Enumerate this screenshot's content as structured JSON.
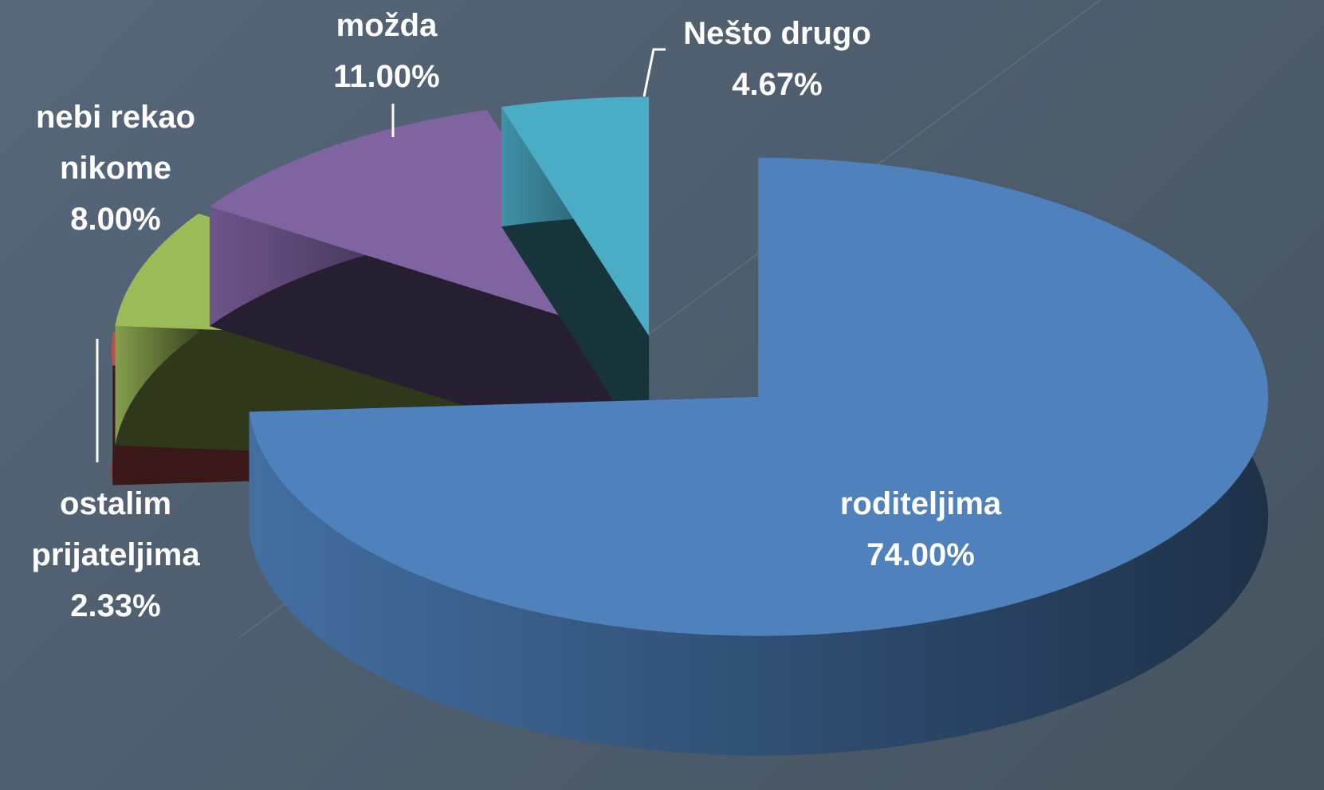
{
  "chart_data": {
    "type": "pie3d",
    "categories": [
      "roditeljima",
      "ostalim prijateljima",
      "nebi rekao nikome",
      "možda",
      "Nešto drugo"
    ],
    "values": [
      74,
      2.33,
      8,
      11,
      4.67
    ],
    "value_labels": [
      "74.00%",
      "2.33%",
      "8.00%",
      "11.00%",
      "4.67%"
    ],
    "colors": [
      "#4f81bd",
      "#c0504d",
      "#9bbb59",
      "#8064a2",
      "#4bacc6"
    ]
  }
}
